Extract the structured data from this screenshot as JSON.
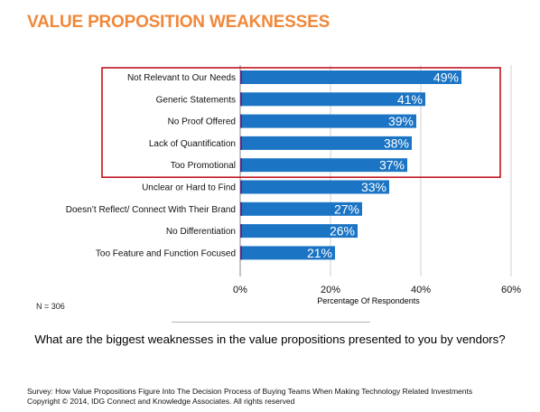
{
  "header": {
    "title": "VALUE PROPOSITION WEAKNESSES"
  },
  "note": "N = 306",
  "question": "What are the biggest weaknesses in the value propositions presented to you by vendors?",
  "footer": {
    "survey": "Survey:  How Value Propositions Figure Into The Decision Process of Buying Teams When Making Technology Related Investments",
    "copyright": "Copyright © 2014, IDG Connect and Knowledge Associates. All rights reserved"
  },
  "colors": {
    "title": "#f0883a",
    "bar": "#1b75c4",
    "bar_edge": "#5b2a86",
    "highlight": "#c0141e",
    "gridline": "#d0d0d0"
  },
  "chart_data": {
    "type": "bar",
    "orientation": "horizontal",
    "categories": [
      "Not Relevant to Our Needs",
      "Generic Statements",
      "No Proof Offered",
      "Lack of Quantification",
      "Too Promotional",
      "Unclear or Hard to Find",
      "Doesn’t Reflect/ Connect With Their Brand",
      "No Differentiation",
      "Too Feature and Function Focused"
    ],
    "values": [
      49,
      41,
      39,
      38,
      37,
      33,
      27,
      26,
      21
    ],
    "value_labels": [
      "49%",
      "41%",
      "39%",
      "38%",
      "37%",
      "33%",
      "27%",
      "26%",
      "21%"
    ],
    "xlim": [
      0,
      60
    ],
    "xticks": [
      0,
      20,
      40,
      60
    ],
    "xtick_labels": [
      "0%",
      "20%",
      "40%",
      "60%"
    ],
    "xlabel": "Percentage Of Respondents",
    "ylabel": "",
    "grid": true,
    "highlighted_categories": 5
  }
}
